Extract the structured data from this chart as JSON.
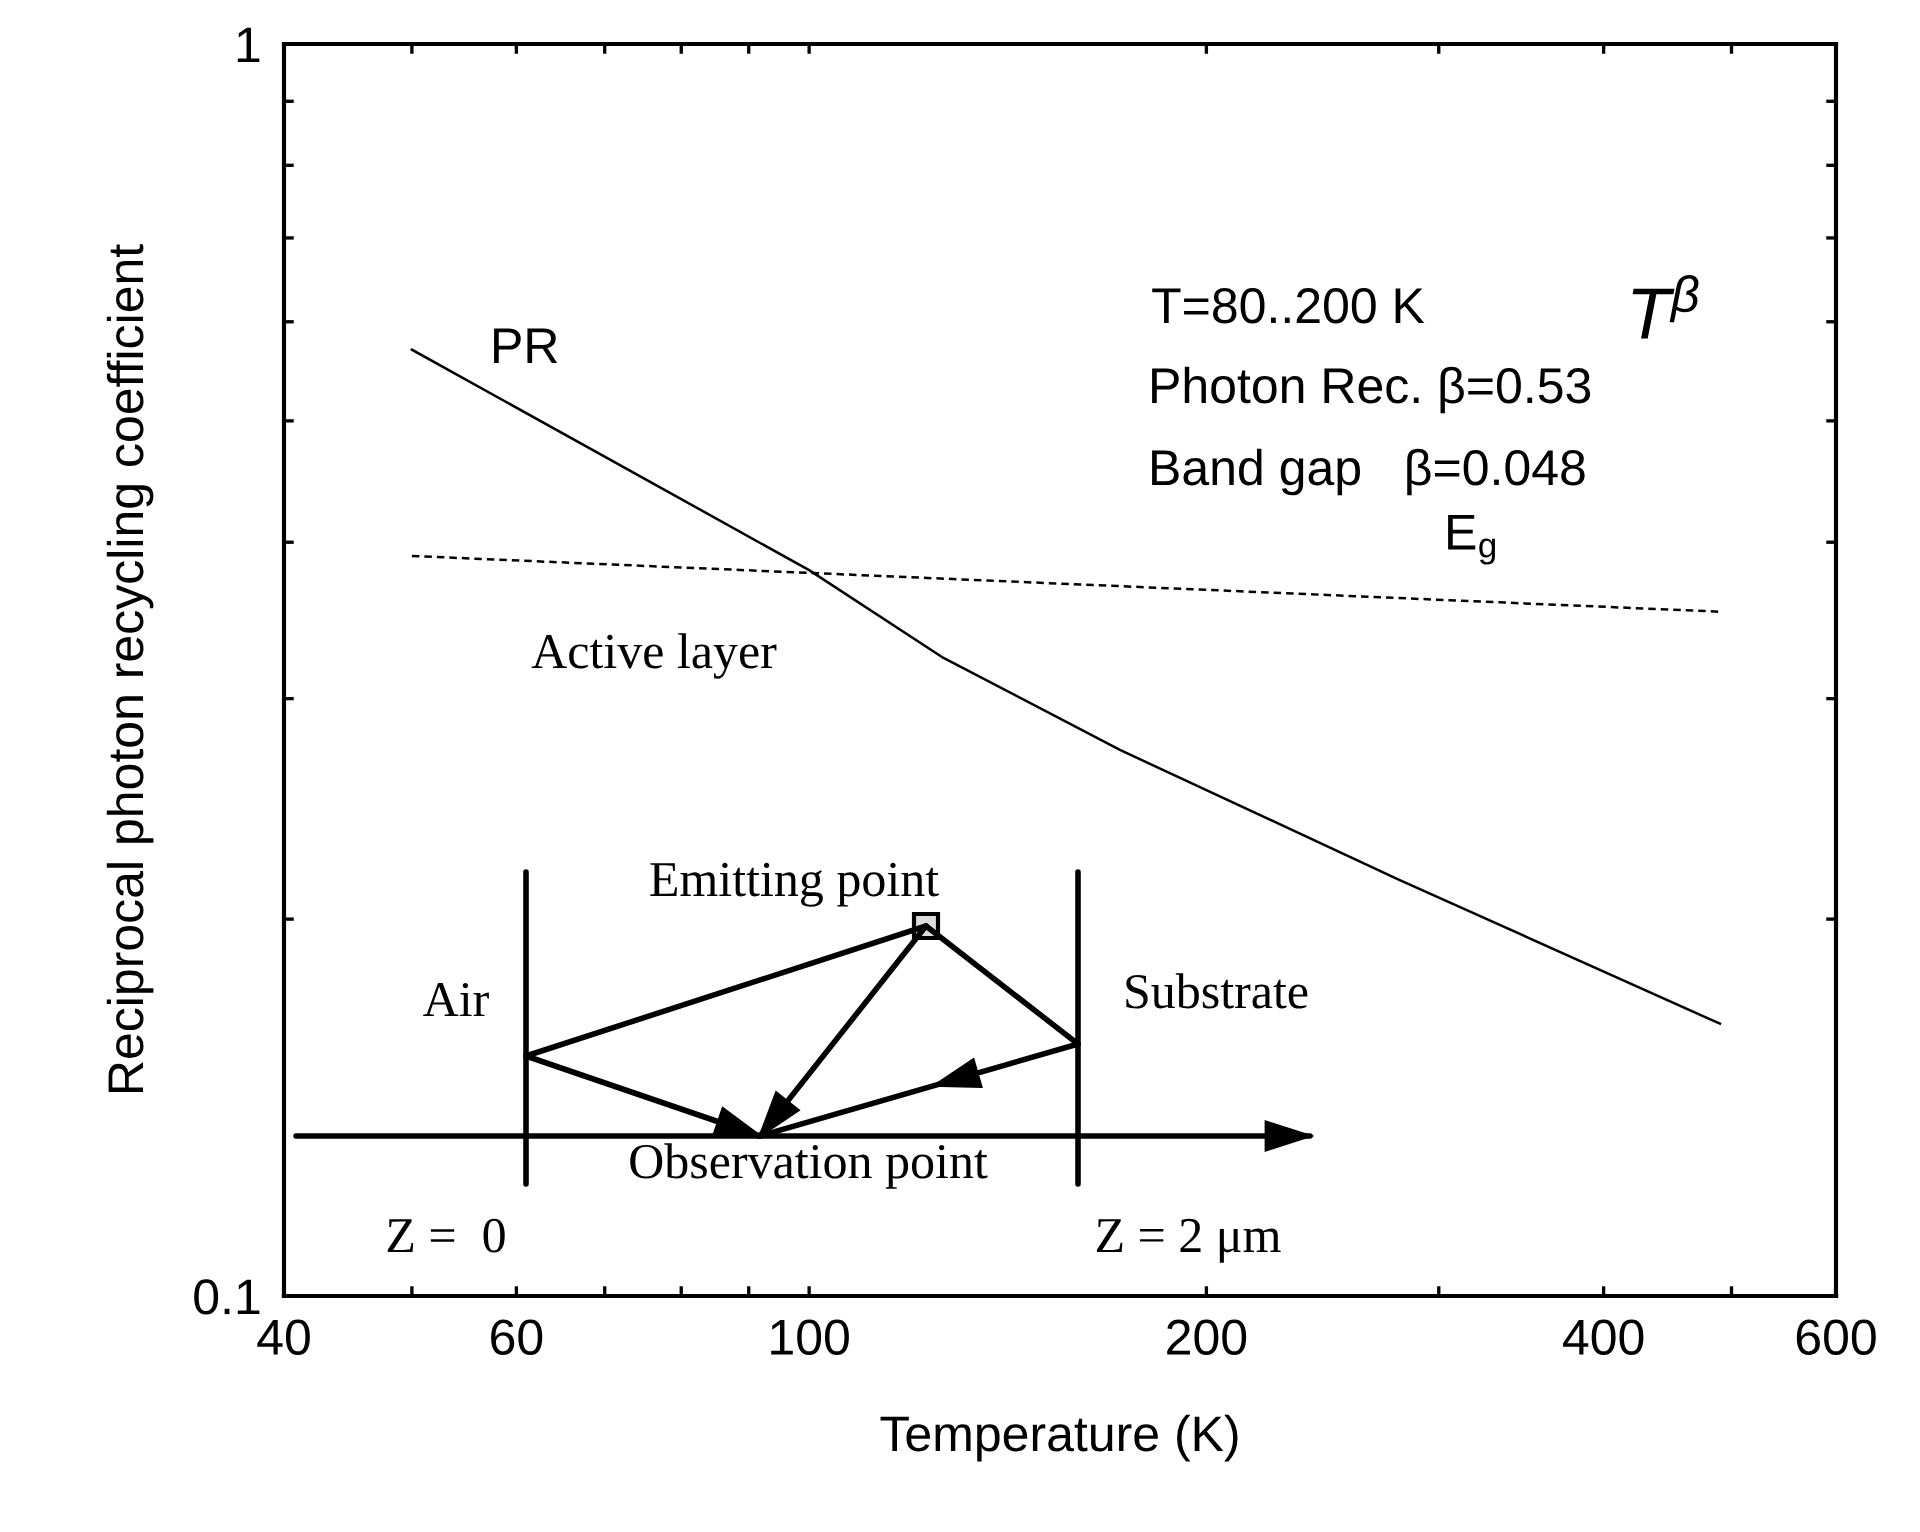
{
  "chart_data": {
    "type": "line",
    "xlabel": "Temperature (K)",
    "ylabel": "Reciprocal photon recycling coefficient",
    "log": "xy",
    "xlim": [
      40,
      600
    ],
    "ylim": [
      0.1,
      1
    ],
    "xticks": [
      40,
      {
        "value": 50,
        "label": null
      },
      60,
      {
        "value": 70,
        "label": null
      },
      {
        "value": 80,
        "label": null
      },
      {
        "value": 90,
        "label": null
      },
      100,
      200,
      {
        "value": 300,
        "label": null
      },
      400,
      {
        "value": 500,
        "label": null
      },
      600
    ],
    "yticks": [
      0.1,
      {
        "value": 0.2,
        "label": null
      },
      {
        "value": 0.3,
        "label": null
      },
      {
        "value": 0.4,
        "label": null
      },
      {
        "value": 0.5,
        "label": null
      },
      {
        "value": 0.6,
        "label": null
      },
      {
        "value": 0.7,
        "label": null
      },
      {
        "value": 0.8,
        "label": null
      },
      {
        "value": 0.9,
        "label": null
      },
      1
    ],
    "grid": false,
    "legend": false,
    "marker": "none",
    "series": [
      {
        "name": "PR",
        "color": "#000000",
        "line_style": "solid",
        "x": [
          50,
          100,
          126,
          172,
          280,
          490
        ],
        "values": [
          0.57,
          0.38,
          0.324,
          0.273,
          0.215,
          0.165
        ]
      },
      {
        "name": "E$_{g}$",
        "color": "#000000",
        "line_style": "dashed",
        "x": [
          50,
          490
        ],
        "values": [
          0.39,
          0.352
        ]
      }
    ],
    "annotations": [
      "T$^{β}$",
      "T=80..200 K",
      "Photon Rec. β=0.53",
      "Band gap   β=0.048",
      "Active layer",
      "Emitting point",
      "Air",
      "Substrate",
      "Observation point",
      "Z =  0",
      "Z = 2 μm"
    ]
  }
}
